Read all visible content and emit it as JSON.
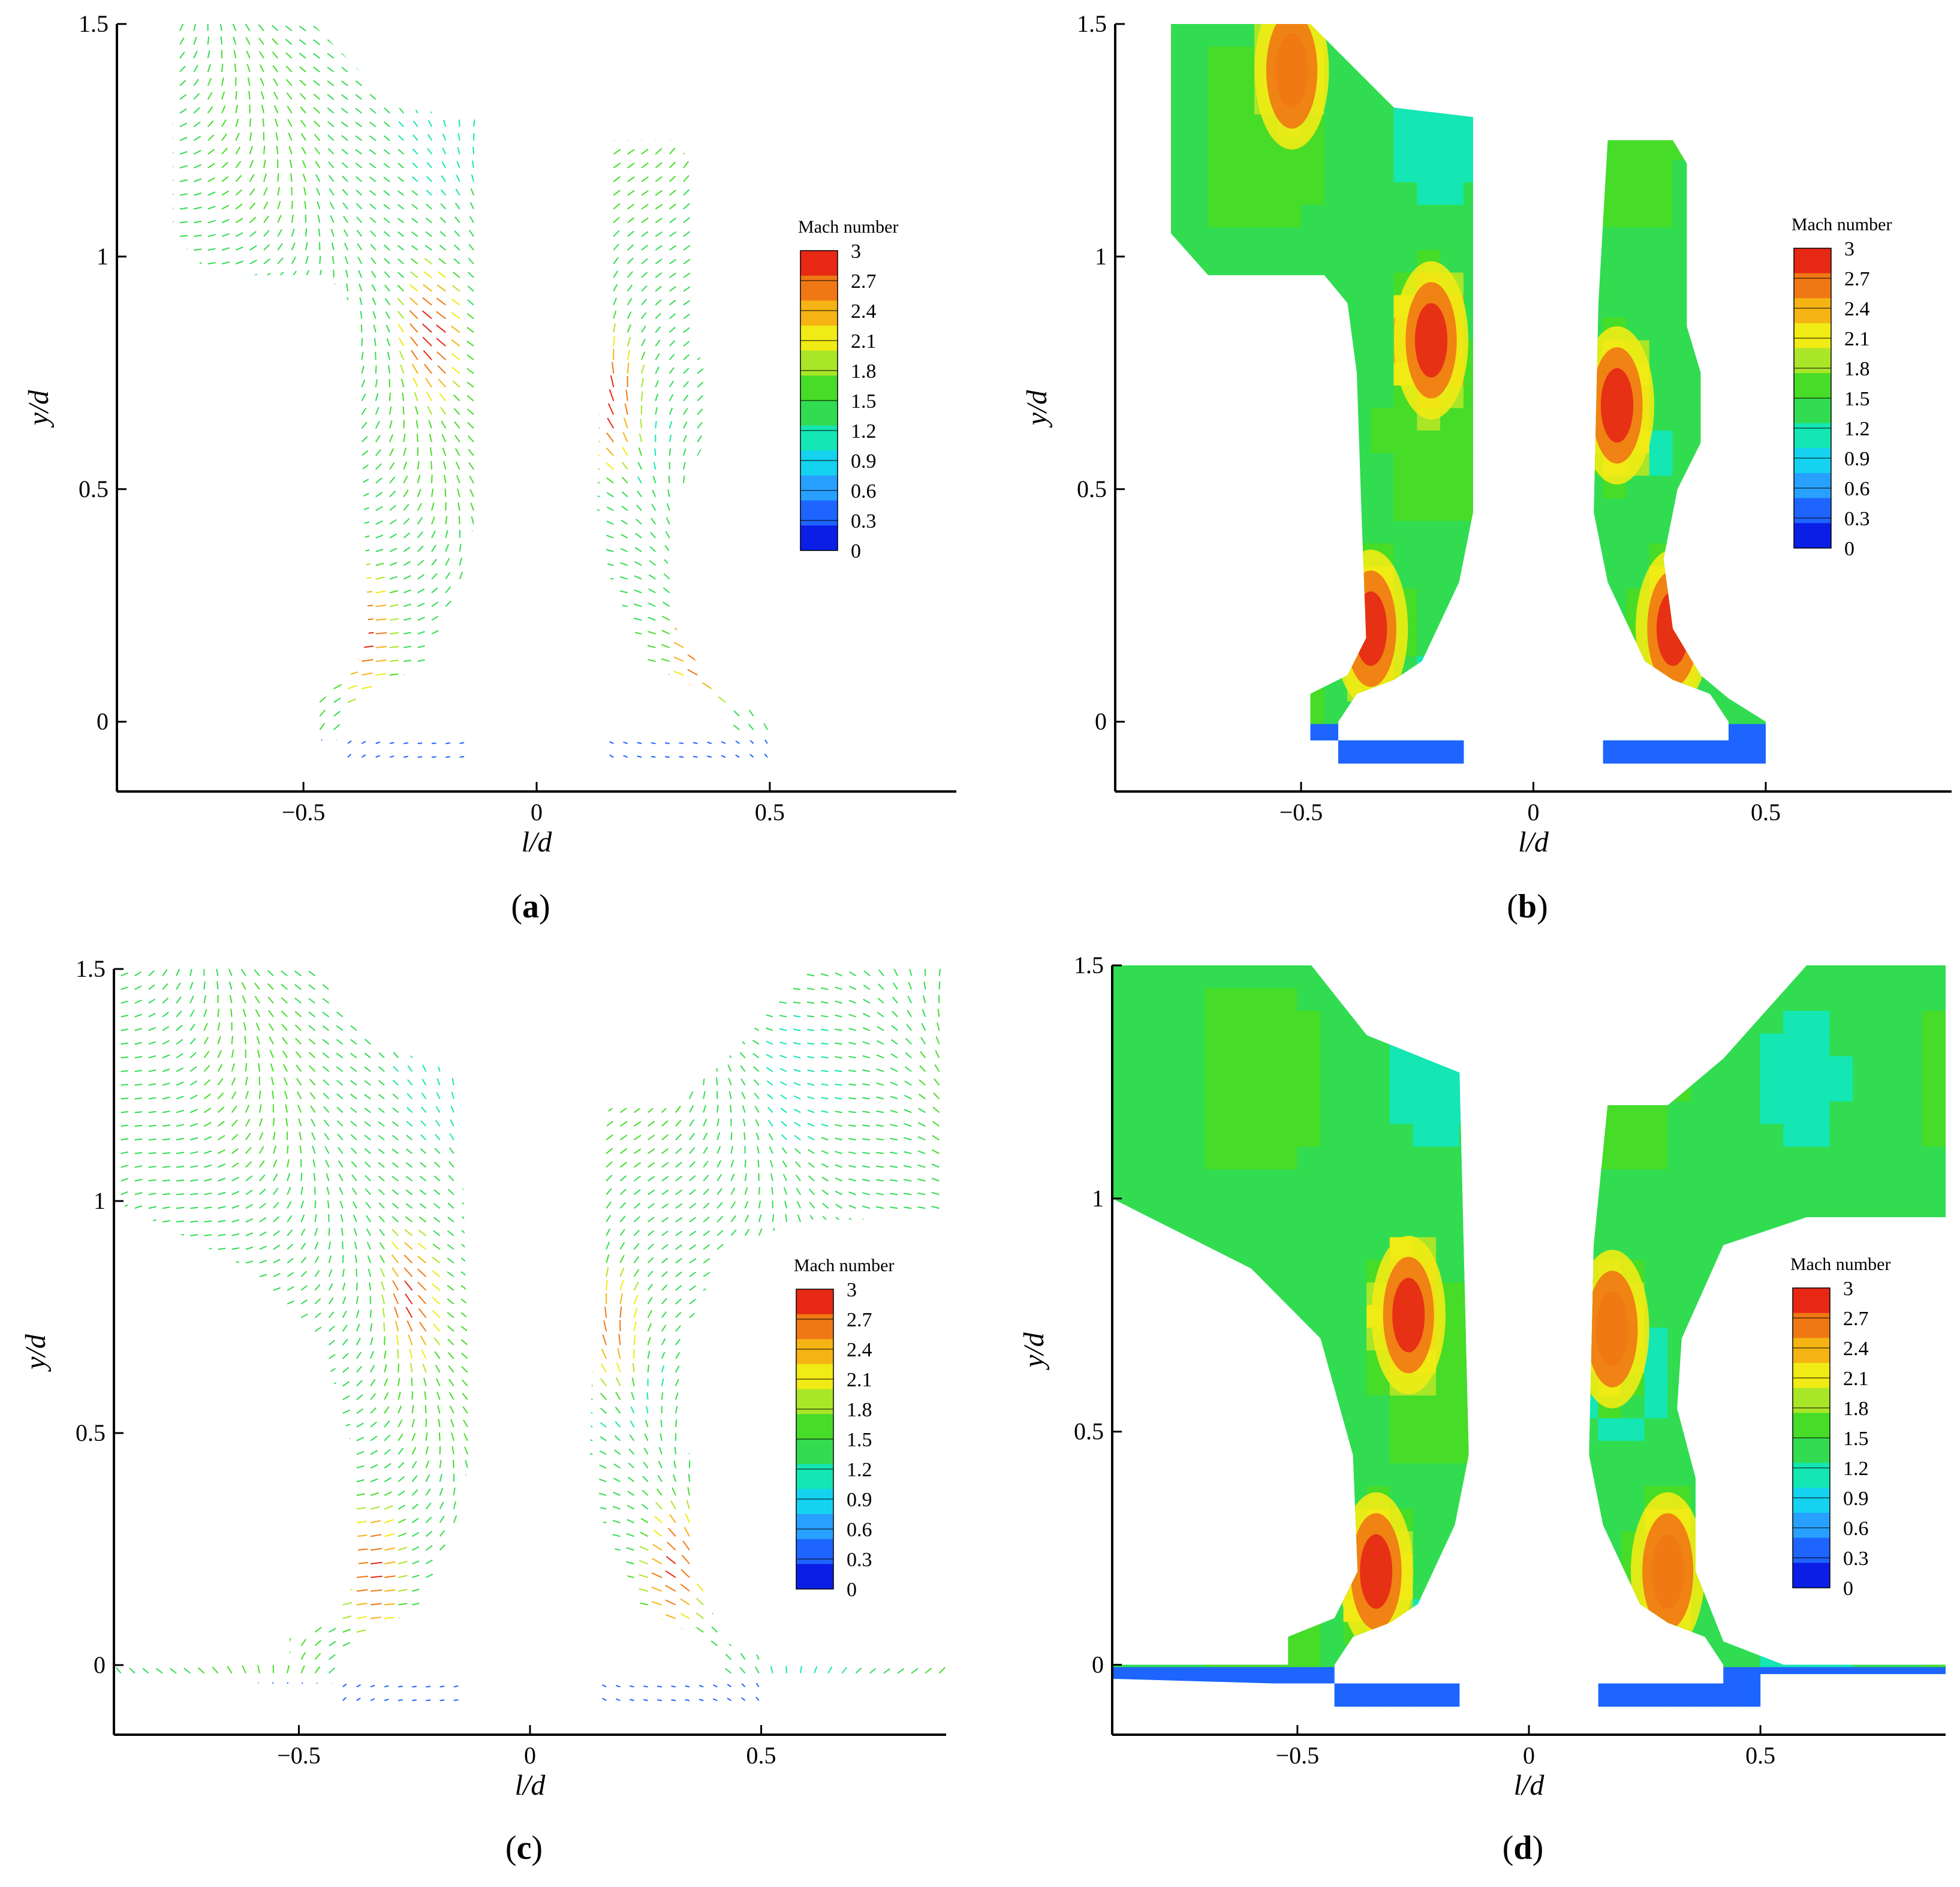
{
  "chart_data": [
    {
      "panel": "a",
      "type": "vector-field",
      "caption_letter": "a",
      "xlabel": "l/d",
      "ylabel": "y/d",
      "xlim": [
        -0.9,
        0.9
      ],
      "ylim": [
        -0.15,
        1.5
      ],
      "xticks": [
        -0.5,
        0,
        0.5
      ],
      "xtick_labels": [
        "−0.5",
        "0",
        "0.5"
      ],
      "yticks": [
        0,
        0.5,
        1,
        1.5
      ],
      "ytick_labels": [
        "0",
        "0.5",
        "1",
        "1.5"
      ],
      "colorbar_title": "Mach number",
      "max_regions": [
        {
          "l": -0.22,
          "y": 0.82,
          "mach": 3.0
        },
        {
          "l": 0.16,
          "y": 0.68,
          "mach": 2.9
        },
        {
          "l": -0.38,
          "y": 0.18,
          "mach": 2.8
        },
        {
          "l": 0.36,
          "y": 0.16,
          "mach": 2.8
        }
      ]
    },
    {
      "panel": "b",
      "type": "contour",
      "caption_letter": "b",
      "xlabel": "l/d",
      "ylabel": "y/d",
      "xlim": [
        -0.9,
        0.9
      ],
      "ylim": [
        -0.15,
        1.5
      ],
      "xticks": [
        -0.5,
        0,
        0.5
      ],
      "xtick_labels": [
        "−0.5",
        "0",
        "0.5"
      ],
      "yticks": [
        0,
        0.5,
        1,
        1.5
      ],
      "ytick_labels": [
        "0",
        "0.5",
        "1",
        "1.5"
      ],
      "colorbar_title": "Mach number",
      "max_regions": [
        {
          "l": -0.22,
          "y": 0.82,
          "mach": 3.0
        },
        {
          "l": 0.18,
          "y": 0.68,
          "mach": 2.9
        },
        {
          "l": -0.35,
          "y": 0.2,
          "mach": 2.8
        },
        {
          "l": 0.3,
          "y": 0.2,
          "mach": 2.8
        },
        {
          "l": -0.52,
          "y": 1.4,
          "mach": 2.6
        }
      ]
    },
    {
      "panel": "c",
      "type": "vector-field",
      "caption_letter": "c",
      "xlabel": "l/d",
      "ylabel": "y/d",
      "xlim": [
        -0.9,
        0.9
      ],
      "ylim": [
        -0.15,
        1.5
      ],
      "xticks": [
        -0.5,
        0,
        0.5
      ],
      "xtick_labels": [
        "−0.5",
        "0",
        "0.5"
      ],
      "yticks": [
        0,
        0.5,
        1,
        1.5
      ],
      "ytick_labels": [
        "0",
        "0.5",
        "1",
        "1.5"
      ],
      "colorbar_title": "Mach number",
      "max_regions": [
        {
          "l": -0.25,
          "y": 0.78,
          "mach": 2.9
        },
        {
          "l": 0.18,
          "y": 0.72,
          "mach": 2.6
        },
        {
          "l": -0.35,
          "y": 0.2,
          "mach": 2.8
        },
        {
          "l": 0.32,
          "y": 0.2,
          "mach": 2.8
        }
      ]
    },
    {
      "panel": "d",
      "type": "contour",
      "caption_letter": "d",
      "xlabel": "l/d",
      "ylabel": "y/d",
      "xlim": [
        -0.9,
        0.9
      ],
      "ylim": [
        -0.15,
        1.5
      ],
      "xticks": [
        -0.5,
        0,
        0.5
      ],
      "xtick_labels": [
        "−0.5",
        "0",
        "0.5"
      ],
      "yticks": [
        0,
        0.5,
        1,
        1.5
      ],
      "ytick_labels": [
        "0",
        "0.5",
        "1",
        "1.5"
      ],
      "colorbar_title": "Mach number",
      "max_regions": [
        {
          "l": -0.26,
          "y": 0.75,
          "mach": 3.0
        },
        {
          "l": 0.18,
          "y": 0.72,
          "mach": 2.6
        },
        {
          "l": -0.33,
          "y": 0.2,
          "mach": 2.8
        },
        {
          "l": 0.3,
          "y": 0.2,
          "mach": 2.7
        }
      ]
    }
  ],
  "colorbar": {
    "title": "Mach number",
    "levels": [
      0,
      0.3,
      0.6,
      0.9,
      1.2,
      1.5,
      1.8,
      2.1,
      2.4,
      2.7,
      3.0
    ],
    "tick_labels": [
      "3",
      "2.7",
      "2.4",
      "2.1",
      "1.8",
      "1.5",
      "1.2",
      "0.9",
      "0.6",
      "0.3",
      "0"
    ],
    "colors": [
      "#0a1ee6",
      "#1e64ff",
      "#28a0ff",
      "#14d2f0",
      "#14e6b4",
      "#32dc50",
      "#46dc28",
      "#aae628",
      "#f0eb14",
      "#f5b414",
      "#f07814",
      "#e62814"
    ]
  },
  "captions": [
    {
      "open": "(",
      "letter": "a",
      "close": ")"
    },
    {
      "open": "(",
      "letter": "b",
      "close": ")"
    },
    {
      "open": "(",
      "letter": "c",
      "close": ")"
    },
    {
      "open": "(",
      "letter": "d",
      "close": ")"
    }
  ]
}
